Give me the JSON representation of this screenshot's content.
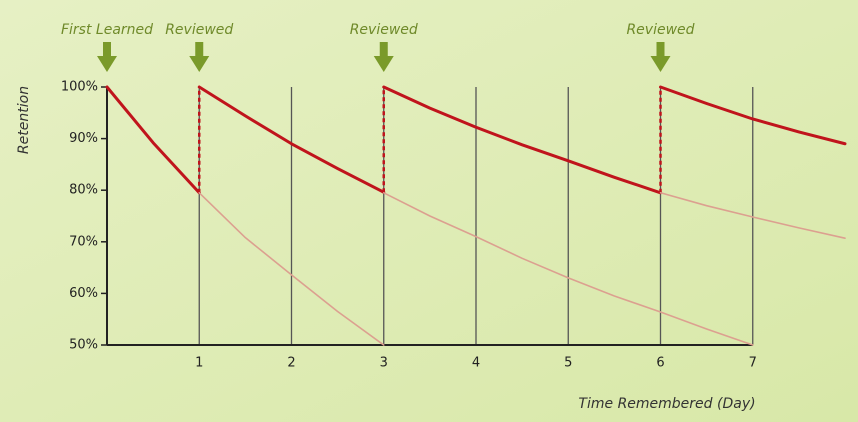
{
  "chart_data": {
    "type": "line",
    "y_label": "Retention",
    "x_label": "Time Remembered (Day)",
    "xlim": [
      0,
      8
    ],
    "ylim": [
      50,
      100
    ],
    "xticks": [
      1,
      2,
      3,
      4,
      5,
      6,
      7
    ],
    "yticks": [
      {
        "value": 50,
        "label": "50%"
      },
      {
        "value": 60,
        "label": "60%"
      },
      {
        "value": 70,
        "label": "70%"
      },
      {
        "value": 80,
        "label": "80%"
      },
      {
        "value": 90,
        "label": "90%"
      },
      {
        "value": 100,
        "label": "100%"
      }
    ],
    "grid": true,
    "annotations": [
      {
        "text": "First Learned",
        "x": 0
      },
      {
        "text": "Reviewed",
        "x": 1
      },
      {
        "text": "Reviewed",
        "x": 3
      },
      {
        "text": "Reviewed",
        "x": 6
      }
    ],
    "series": [
      {
        "color": "#c0141c",
        "width": 3,
        "x": [
          0,
          0.5,
          1,
          1,
          1,
          1.5,
          2,
          2.5,
          3,
          3,
          3,
          3.5,
          4,
          4.5,
          5,
          5.5,
          6,
          6,
          6,
          6.5,
          7,
          7.5,
          8
        ],
        "values": [
          100,
          89.2,
          79.5,
          null,
          100,
          94.4,
          89,
          84.2,
          79.6,
          null,
          100,
          95.9,
          92.2,
          88.8,
          85.7,
          82.5,
          79.5,
          null,
          100,
          96.8,
          93.8,
          91.3,
          89
        ]
      },
      {
        "color": "#dca090",
        "width": 1.6,
        "x": [
          1,
          1.5,
          2,
          2.5,
          3,
          3,
          3,
          3.5,
          4,
          4.5,
          5,
          5.5,
          6,
          6.5,
          7,
          7,
          6,
          6.5,
          7,
          7.5,
          8
        ],
        "values": [
          79.5,
          70.8,
          63.6,
          56.5,
          50,
          null,
          79.5,
          75,
          71,
          66.8,
          63,
          59.5,
          56.4,
          53.1,
          50,
          null,
          79.5,
          77,
          74.8,
          72.7,
          70.7
        ]
      }
    ]
  }
}
